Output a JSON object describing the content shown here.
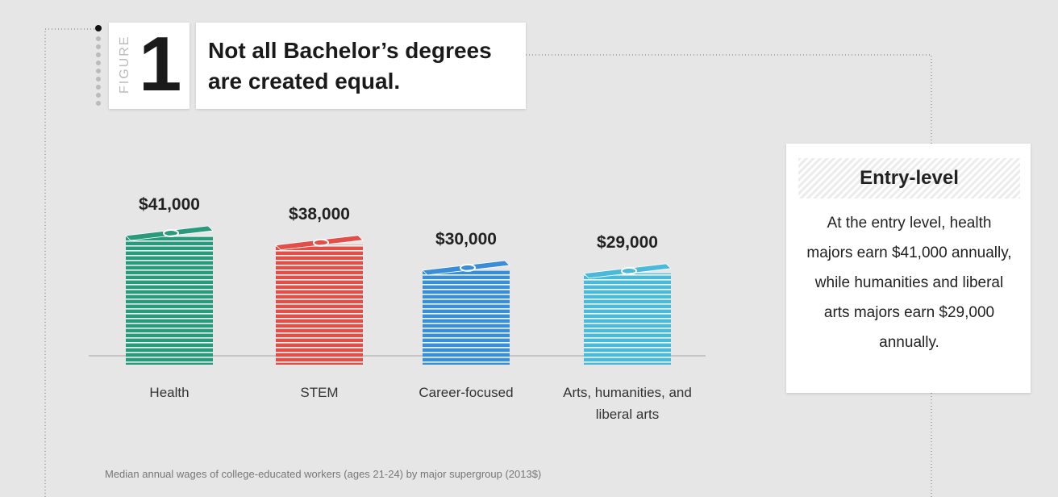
{
  "figure_label": "FIGURE",
  "figure_number": "1",
  "chart_data": {
    "type": "bar",
    "title": "Not all Bachelor’s degrees are created equal.",
    "categories": [
      "Health",
      "STEM",
      "Career-focused",
      "Arts, humanities, and liberal arts"
    ],
    "values": [
      41000,
      38000,
      30000,
      29000
    ],
    "value_labels": [
      "$41,000",
      "$38,000",
      "$30,000",
      "$29,000"
    ],
    "colors": [
      "#2a9a7c",
      "#e24f48",
      "#3a8ed8",
      "#4bb9da"
    ],
    "caption": "Median annual wages of college-educated workers (ages 21-24) by major supergroup (2013$)"
  },
  "sidebar": {
    "title": "Entry-level",
    "text": "At the entry level, health majors earn $41,000 annually, while humanities and liberal arts majors earn $29,000 annually."
  }
}
